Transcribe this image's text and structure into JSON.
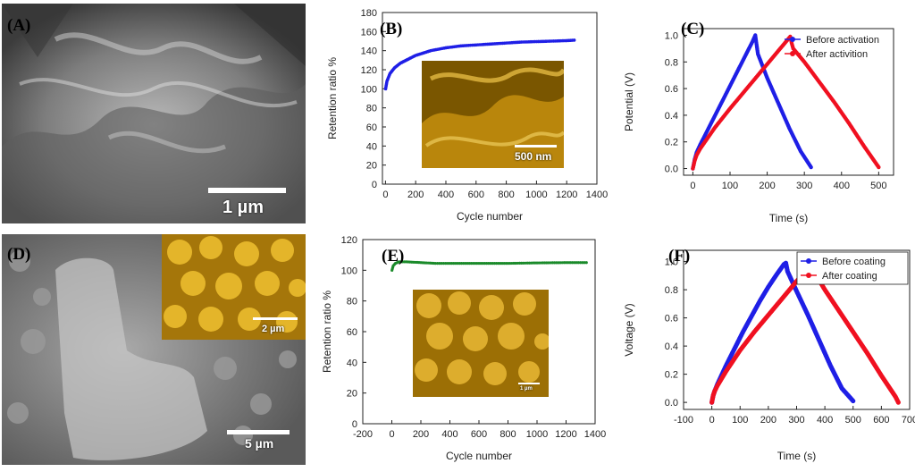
{
  "panels": {
    "A": {
      "label": "(A)",
      "scale": "1 µm"
    },
    "B": {
      "label": "(B)",
      "inset_scale": "500 nm"
    },
    "C": {
      "label": "(C)"
    },
    "D": {
      "label": "(D)",
      "scale": "5 µm",
      "inset_scale": "2 µm"
    },
    "E": {
      "label": "(E)",
      "inset_scale": "1 µm"
    },
    "F": {
      "label": "(F)"
    }
  },
  "colors": {
    "blue": "#1f1fe6",
    "red": "#f01020",
    "green": "#1a8a2a",
    "sem_gold": "#c99a10"
  },
  "chart_data": [
    {
      "id": "B",
      "type": "line",
      "xlabel": "Cycle number",
      "ylabel": "Retention ratio %",
      "xlim": [
        -20,
        1400
      ],
      "ylim": [
        0,
        180
      ],
      "xticks": [
        0,
        200,
        400,
        600,
        800,
        1000,
        1200,
        1400
      ],
      "yticks": [
        0,
        20,
        40,
        60,
        80,
        100,
        120,
        140,
        160,
        180
      ],
      "series": [
        {
          "color": "#1f1fe6",
          "x": [
            1,
            10,
            30,
            60,
            100,
            150,
            200,
            300,
            400,
            500,
            600,
            700,
            800,
            900,
            1000,
            1100,
            1200,
            1250
          ],
          "y": [
            100,
            108,
            116,
            122,
            127,
            131,
            135,
            140,
            143,
            145,
            146,
            147,
            148,
            149,
            149.5,
            150,
            150.5,
            151
          ]
        }
      ]
    },
    {
      "id": "C",
      "type": "line",
      "xlabel": "Time (s)",
      "ylabel": "Potential (V)",
      "xlim": [
        -25,
        540
      ],
      "ylim": [
        -0.05,
        1.05
      ],
      "xticks": [
        0,
        100,
        200,
        300,
        400,
        500
      ],
      "yticks": [
        0.0,
        0.2,
        0.4,
        0.6,
        0.8,
        1.0
      ],
      "legend": "top-right",
      "series": [
        {
          "name": "Before activation",
          "color": "#1f1fe6",
          "x": [
            0,
            5,
            10,
            20,
            40,
            60,
            80,
            100,
            120,
            140,
            160,
            168,
            172,
            175,
            200,
            230,
            260,
            290,
            318
          ],
          "y": [
            0.0,
            0.07,
            0.12,
            0.18,
            0.29,
            0.4,
            0.51,
            0.62,
            0.73,
            0.84,
            0.95,
            1.0,
            0.92,
            0.86,
            0.68,
            0.49,
            0.3,
            0.13,
            0.01
          ]
        },
        {
          "name": "After activition",
          "color": "#f01020",
          "x": [
            0,
            5,
            10,
            20,
            40,
            60,
            80,
            100,
            130,
            160,
            190,
            220,
            250,
            262,
            266,
            270,
            300,
            340,
            380,
            420,
            460,
            500
          ],
          "y": [
            0.0,
            0.06,
            0.1,
            0.15,
            0.23,
            0.31,
            0.38,
            0.45,
            0.55,
            0.65,
            0.75,
            0.85,
            0.95,
            0.99,
            0.94,
            0.9,
            0.8,
            0.65,
            0.5,
            0.34,
            0.17,
            0.01
          ]
        }
      ]
    },
    {
      "id": "E",
      "type": "line",
      "xlabel": "Cycle number",
      "ylabel": "Retention ratio %",
      "xlim": [
        -200,
        1400
      ],
      "ylim": [
        0,
        120
      ],
      "xticks": [
        -200,
        0,
        200,
        400,
        600,
        800,
        1000,
        1200,
        1400
      ],
      "yticks": [
        0,
        20,
        40,
        60,
        80,
        100,
        120
      ],
      "series": [
        {
          "color": "#1a8a2a",
          "x": [
            1,
            10,
            25,
            50,
            100,
            200,
            300,
            400,
            600,
            800,
            1000,
            1200,
            1340
          ],
          "y": [
            100,
            103,
            104.5,
            105.5,
            105.5,
            105,
            104.5,
            104.5,
            104.5,
            104.5,
            104.8,
            105,
            105
          ]
        }
      ]
    },
    {
      "id": "F",
      "type": "line",
      "xlabel": "Time (s)",
      "ylabel": "Voltage (V)",
      "xlim": [
        -100,
        700
      ],
      "ylim": [
        -0.05,
        1.08
      ],
      "xticks": [
        -100,
        0,
        100,
        200,
        300,
        400,
        500,
        600,
        700
      ],
      "yticks": [
        0.0,
        0.2,
        0.4,
        0.6,
        0.8,
        1.0
      ],
      "legend": "top-right",
      "series": [
        {
          "name": "Before coating",
          "color": "#1f1fe6",
          "x": [
            0,
            5,
            10,
            20,
            50,
            80,
            110,
            140,
            170,
            200,
            230,
            255,
            262,
            268,
            300,
            340,
            380,
            420,
            460,
            500
          ],
          "y": [
            0.0,
            0.05,
            0.08,
            0.13,
            0.26,
            0.38,
            0.5,
            0.61,
            0.72,
            0.82,
            0.91,
            0.98,
            0.99,
            0.93,
            0.79,
            0.62,
            0.44,
            0.26,
            0.1,
            0.01
          ]
        },
        {
          "name": "After coating",
          "color": "#f01020",
          "x": [
            0,
            5,
            10,
            20,
            50,
            100,
            150,
            200,
            250,
            300,
            340,
            355,
            362,
            370,
            400,
            450,
            500,
            550,
            600,
            650,
            660
          ],
          "y": [
            0.0,
            0.05,
            0.08,
            0.12,
            0.22,
            0.37,
            0.5,
            0.62,
            0.74,
            0.86,
            0.95,
            0.99,
            0.94,
            0.9,
            0.8,
            0.65,
            0.5,
            0.35,
            0.19,
            0.04,
            0.0
          ]
        }
      ]
    }
  ]
}
